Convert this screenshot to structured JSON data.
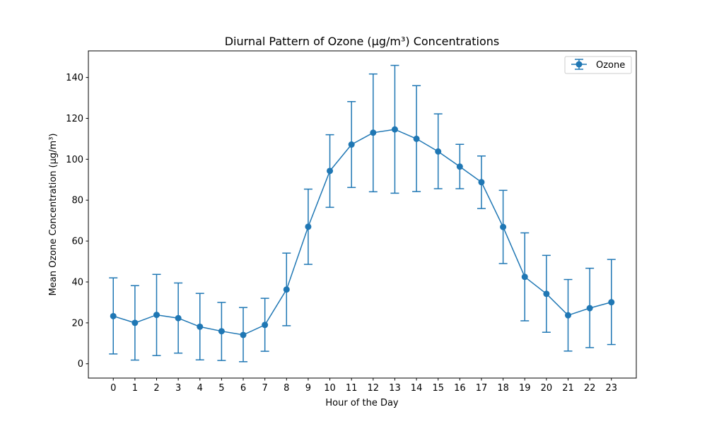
{
  "chart_data": {
    "type": "line",
    "title": "Diurnal Pattern of Ozone (µg/m³) Concentrations",
    "xlabel": "Hour of the Day",
    "ylabel": "Mean Ozone Concentration (µg/m³)",
    "x": [
      0,
      1,
      2,
      3,
      4,
      5,
      6,
      7,
      8,
      9,
      10,
      11,
      12,
      13,
      14,
      15,
      16,
      17,
      18,
      19,
      20,
      21,
      22,
      23
    ],
    "xlim": [
      -1.15,
      24.15
    ],
    "ylim": [
      -7,
      153
    ],
    "yticks": [
      0,
      20,
      40,
      60,
      80,
      100,
      120,
      140
    ],
    "legend_position": "top-right",
    "series": [
      {
        "name": "Ozone",
        "color": "#1f77b4",
        "marker": "circle",
        "values": [
          23.3,
          20.0,
          23.9,
          22.3,
          18.1,
          15.9,
          14.1,
          19.0,
          36.3,
          67.0,
          94.3,
          107.2,
          113.0,
          114.6,
          110.0,
          103.8,
          96.4,
          88.8,
          66.9,
          42.5,
          34.2,
          23.7,
          27.2,
          30.1
        ],
        "error_low": [
          4.8,
          1.8,
          4.0,
          5.2,
          1.9,
          1.6,
          1.0,
          6.1,
          18.6,
          48.6,
          76.5,
          86.2,
          84.1,
          83.4,
          84.2,
          85.6,
          85.6,
          75.9,
          49.0,
          21.0,
          15.4,
          6.2,
          7.9,
          9.4
        ],
        "error_high": [
          42.0,
          38.2,
          43.7,
          39.5,
          34.4,
          30.0,
          27.5,
          32.0,
          54.1,
          85.4,
          112.0,
          128.2,
          141.7,
          145.9,
          136.0,
          122.2,
          107.3,
          101.6,
          84.8,
          64.0,
          53.0,
          41.2,
          46.7,
          51.0
        ]
      }
    ]
  }
}
